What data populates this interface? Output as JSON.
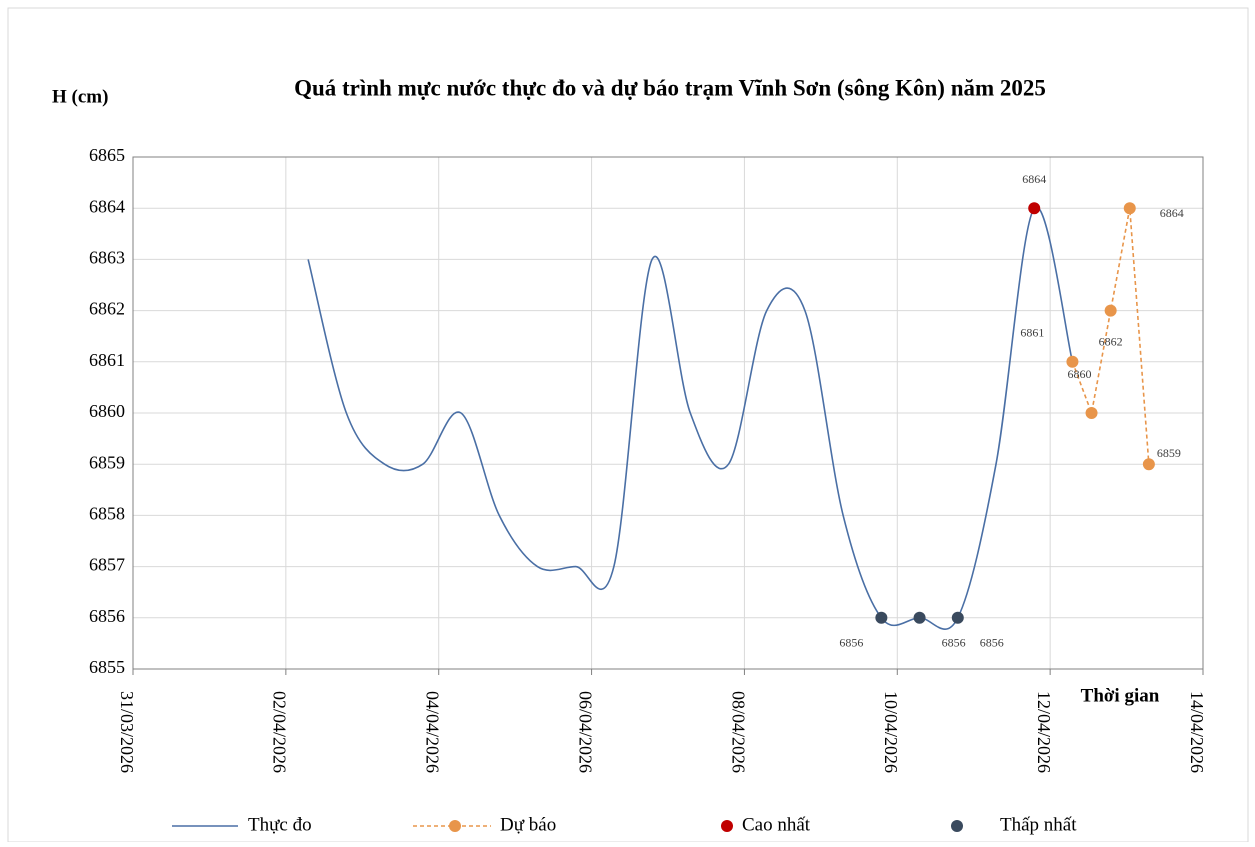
{
  "chart_data": {
    "type": "line",
    "title": "Quá trình mực nước thực đo và dự báo trạm Vĩnh Sơn (sông Kôn) năm 2025",
    "y_label": "H (cm)",
    "x_label": "Thời gian",
    "xlim": [
      "2026-03-31",
      "2026-04-14"
    ],
    "xticks": [
      {
        "value": "2026-03-31",
        "label": "31/03/2026"
      },
      {
        "value": "2026-04-02",
        "label": "02/04/2026"
      },
      {
        "value": "2026-04-04",
        "label": "04/04/2026"
      },
      {
        "value": "2026-04-06",
        "label": "06/04/2026"
      },
      {
        "value": "2026-04-08",
        "label": "08/04/2026"
      },
      {
        "value": "2026-04-10",
        "label": "10/04/2026"
      },
      {
        "value": "2026-04-12",
        "label": "12/04/2026"
      },
      {
        "value": "2026-04-14",
        "label": "14/04/2026"
      }
    ],
    "ylim": [
      6855,
      6865
    ],
    "yticks": [
      6855,
      6856,
      6857,
      6858,
      6859,
      6860,
      6861,
      6862,
      6863,
      6864,
      6865
    ],
    "grid": true,
    "legend": "bottom",
    "series": [
      {
        "name": "Thực đo",
        "color": "#4a6fa5",
        "style": "smooth",
        "x": [
          "2026-04-02T07:00",
          "2026-04-02T19:00",
          "2026-04-03T07:00",
          "2026-04-03T19:00",
          "2026-04-04T07:00",
          "2026-04-04T19:00",
          "2026-04-05T07:00",
          "2026-04-05T19:00",
          "2026-04-06T07:00",
          "2026-04-06T19:00",
          "2026-04-07T07:00",
          "2026-04-07T19:00",
          "2026-04-08T07:00",
          "2026-04-08T19:00",
          "2026-04-09T07:00",
          "2026-04-09T19:00",
          "2026-04-10T07:00",
          "2026-04-10T19:00",
          "2026-04-11T07:00",
          "2026-04-11T19:00",
          "2026-04-12T07:00"
        ],
        "values": [
          6863,
          6860,
          6859,
          6859,
          6860,
          6858,
          6857,
          6857,
          6857,
          6863,
          6860,
          6859,
          6862,
          6862,
          6858,
          6856,
          6856,
          6856,
          6859,
          6864,
          6861
        ]
      },
      {
        "name": "Dự báo",
        "color": "#e8954a",
        "style": "dashed-markers",
        "x": [
          "2026-04-12T07:00",
          "2026-04-12T13:00",
          "2026-04-12T19:00",
          "2026-04-13T01:00",
          "2026-04-13T07:00"
        ],
        "values": [
          6861,
          6860,
          6862,
          6864,
          6859
        ]
      },
      {
        "name": "Cao nhất",
        "color": "#c00000",
        "style": "points",
        "x": [
          "2026-04-11T19:00"
        ],
        "values": [
          6864
        ]
      },
      {
        "name": "Thấp nhất",
        "color": "#3a4a5e",
        "style": "points",
        "x": [
          "2026-04-09T19:00",
          "2026-04-10T07:00",
          "2026-04-10T19:00"
        ],
        "values": [
          6856,
          6856,
          6856
        ]
      }
    ]
  }
}
